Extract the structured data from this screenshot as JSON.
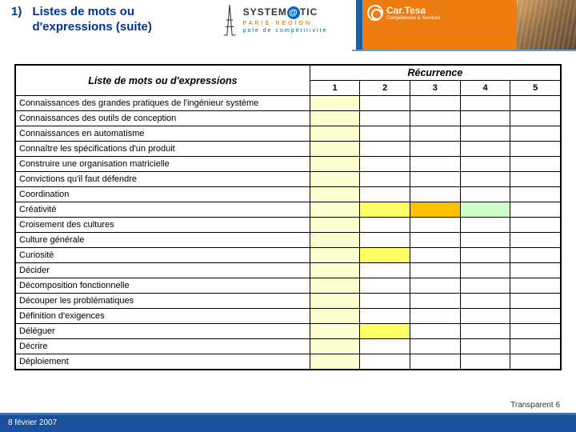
{
  "header": {
    "number": "1)",
    "title": "Listes de mots ou d'expressions (suite)",
    "systematic_top": "SYSTEM",
    "systematic_at": "@",
    "systematic_end": "TIC",
    "systematic_sub1": "PARIS-REGION",
    "systematic_sub2": "pole de compétitivité",
    "cartesa": "Car.Tesa",
    "cartesa_sub": "Compétences & Services"
  },
  "table": {
    "label_header": "Liste de mots ou d'expressions",
    "rec_header": "Récurrence",
    "cols": [
      "1",
      "2",
      "3",
      "4",
      "5"
    ],
    "colors": {
      "ly": "#feffcf",
      "y": "#ffff66",
      "o": "#ffc000",
      "lg": "#ccffcc"
    },
    "rows": [
      {
        "label": "Connaissances des grandes pratiques de l'ingénieur système",
        "cells": [
          "ly",
          "",
          "",
          "",
          ""
        ]
      },
      {
        "label": "Connaissances des outils de conception",
        "cells": [
          "ly",
          "",
          "",
          "",
          ""
        ]
      },
      {
        "label": "Connaissances en automatisme",
        "cells": [
          "ly",
          "",
          "",
          "",
          ""
        ]
      },
      {
        "label": "Connaître les spécifications d'un produit",
        "cells": [
          "ly",
          "",
          "",
          "",
          ""
        ]
      },
      {
        "label": "Construire une organisation matricielle",
        "cells": [
          "ly",
          "",
          "",
          "",
          ""
        ]
      },
      {
        "label": "Convictions qu'il faut défendre",
        "cells": [
          "ly",
          "",
          "",
          "",
          ""
        ]
      },
      {
        "label": "Coordination",
        "cells": [
          "ly",
          "",
          "",
          "",
          ""
        ]
      },
      {
        "label": "Créativité",
        "cells": [
          "ly",
          "y",
          "o",
          "lg",
          ""
        ]
      },
      {
        "label": "Croisement des cultures",
        "cells": [
          "ly",
          "",
          "",
          "",
          ""
        ]
      },
      {
        "label": "Culture générale",
        "cells": [
          "ly",
          "",
          "",
          "",
          ""
        ]
      },
      {
        "label": "Curiosité",
        "cells": [
          "ly",
          "y",
          "",
          "",
          ""
        ]
      },
      {
        "label": "Décider",
        "cells": [
          "ly",
          "",
          "",
          "",
          ""
        ]
      },
      {
        "label": "Décomposition fonctionnelle",
        "cells": [
          "ly",
          "",
          "",
          "",
          ""
        ]
      },
      {
        "label": "Découper les problématiques",
        "cells": [
          "ly",
          "",
          "",
          "",
          ""
        ]
      },
      {
        "label": "Définition d'exigences",
        "cells": [
          "ly",
          "",
          "",
          "",
          ""
        ]
      },
      {
        "label": "Déléguer",
        "cells": [
          "ly",
          "y",
          "",
          "",
          ""
        ]
      },
      {
        "label": "Décrire",
        "cells": [
          "ly",
          "",
          "",
          "",
          ""
        ]
      },
      {
        "label": "Déploiement",
        "cells": [
          "ly",
          "",
          "",
          "",
          ""
        ]
      }
    ]
  },
  "footer": {
    "transparent_label": "Transparent",
    "transparent_num": "6",
    "date": "8 février 2007"
  }
}
